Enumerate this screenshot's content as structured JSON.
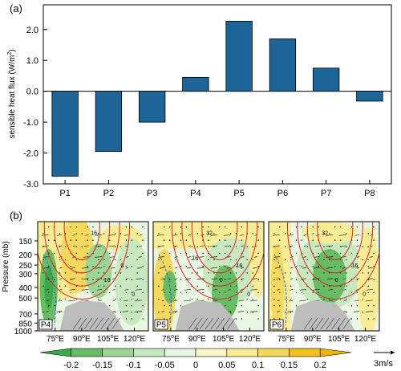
{
  "chart_data": [
    {
      "type": "bar",
      "panel_label": "(a)",
      "categories": [
        "P1",
        "P2",
        "P3",
        "P4",
        "P5",
        "P6",
        "P7",
        "P8"
      ],
      "values": [
        -2.75,
        -1.95,
        -1.0,
        0.45,
        2.27,
        1.7,
        0.75,
        -0.32
      ],
      "ylabel": "sensible heat flux (W/m",
      "ylabel_sup": "2",
      "ylabel_end": ")",
      "ylim": [
        -3.0,
        2.8
      ],
      "yticks": [
        -3.0,
        -2.0,
        -1.0,
        0.0,
        1.0,
        2.0
      ],
      "ytick_labels": [
        "-3.0",
        "-2.0",
        "-1.0",
        "0.0",
        "1.0",
        "2.0"
      ],
      "bar_color": "#1c6596",
      "grid": false
    },
    {
      "type": "heatmap",
      "panel_label": "(b)",
      "ylabel": "Pressure (mb)",
      "ytick_labels": [
        "150",
        "200",
        "250",
        "300",
        "400",
        "500",
        "700",
        "850",
        "1000"
      ],
      "yticks": [
        150,
        200,
        250,
        300,
        400,
        500,
        700,
        850,
        1000
      ],
      "xtick_labels": [
        "75",
        "90",
        "105",
        "120"
      ],
      "xtick_suffix": "E",
      "degree_symbol": "o",
      "panels": [
        {
          "label": "P4",
          "contour_labels": [
            "16",
            "0",
            "0",
            "16"
          ]
        },
        {
          "label": "P5",
          "contour_labels": [
            "32",
            "16",
            "0",
            "0",
            "16"
          ]
        },
        {
          "label": "P6",
          "contour_labels": [
            "32",
            "16",
            "0",
            "0"
          ]
        }
      ],
      "colorbar": {
        "labels": [
          "-0.2",
          "-0.15",
          "-0.1",
          "-0.05",
          "0",
          "0.05",
          "0.1",
          "0.15",
          "0.2"
        ],
        "colors": [
          "#3aa947",
          "#66bd63",
          "#9dd595",
          "#c8e8c0",
          "#e9f6e1",
          "#fbf6c9",
          "#f9ec96",
          "#f5d95f",
          "#f2c21e",
          "#efb400"
        ]
      },
      "vector_reference": "3m/s"
    }
  ]
}
